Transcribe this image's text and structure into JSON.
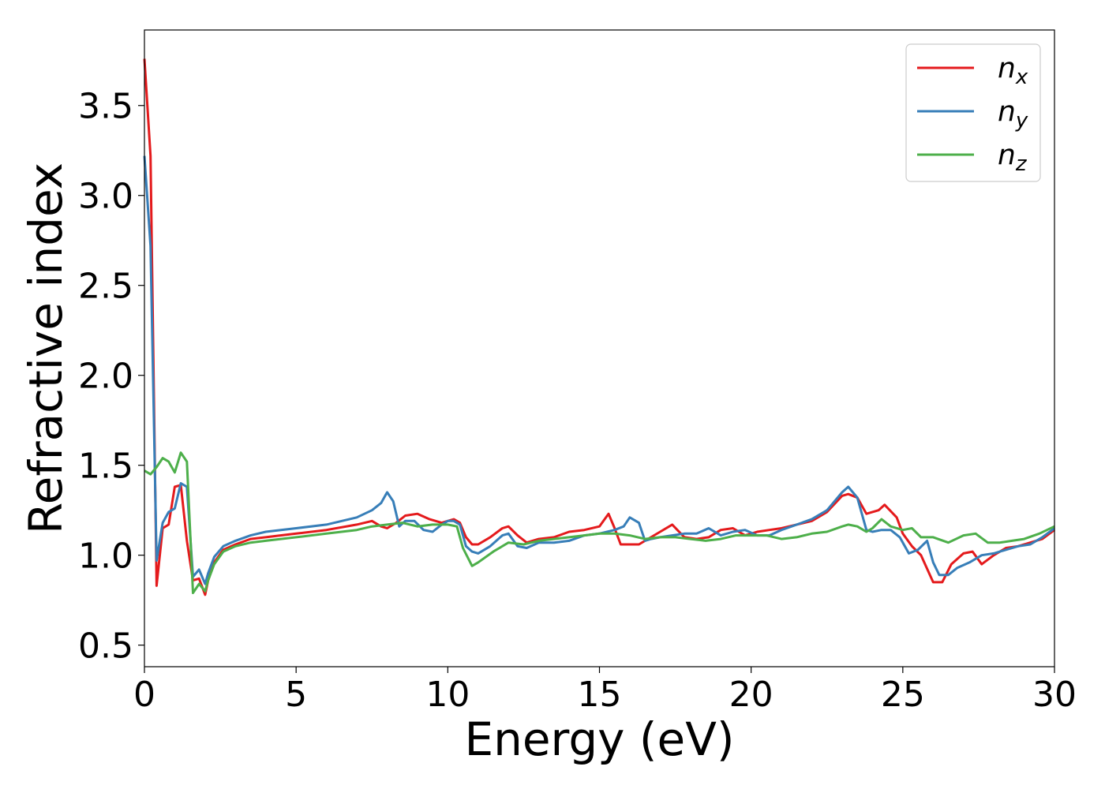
{
  "chart_data": {
    "type": "line",
    "xlabel": "Energy (eV)",
    "ylabel": "Refractive index",
    "xlim": [
      0,
      30
    ],
    "ylim": [
      0.38,
      3.92
    ],
    "xticks": [
      0,
      5,
      10,
      15,
      20,
      25,
      30
    ],
    "xtick_labels": [
      "0",
      "5",
      "10",
      "15",
      "20",
      "25",
      "30"
    ],
    "yticks": [
      0.5,
      1.0,
      1.5,
      2.0,
      2.5,
      3.0,
      3.5
    ],
    "ytick_labels": [
      "0.5",
      "1.0",
      "1.5",
      "2.0",
      "2.5",
      "3.0",
      "3.5"
    ],
    "grid": false,
    "legend_position": "top-right",
    "series": [
      {
        "name": "n",
        "subscript": "x",
        "color": "#e41a1c",
        "x": [
          0,
          0.2,
          0.4,
          0.6,
          0.8,
          1.0,
          1.2,
          1.4,
          1.6,
          1.8,
          2.0,
          2.1,
          2.3,
          2.6,
          3.0,
          3.5,
          4.0,
          5.0,
          6.0,
          7.0,
          7.5,
          7.8,
          8.0,
          8.3,
          8.6,
          9.0,
          9.4,
          9.8,
          10.0,
          10.2,
          10.4,
          10.6,
          10.8,
          11.0,
          11.4,
          11.8,
          12.0,
          12.3,
          12.6,
          13.0,
          13.5,
          14.0,
          14.5,
          15.0,
          15.3,
          15.5,
          15.7,
          16.0,
          16.3,
          16.6,
          17.0,
          17.4,
          17.8,
          18.2,
          18.6,
          19.0,
          19.4,
          19.8,
          20.2,
          20.6,
          21.0,
          21.5,
          22.0,
          22.5,
          23.0,
          23.2,
          23.5,
          23.8,
          24.2,
          24.4,
          24.8,
          25.0,
          25.3,
          25.6,
          26.0,
          26.3,
          26.6,
          27.0,
          27.3,
          27.6,
          28.0,
          28.4,
          28.8,
          29.2,
          29.6,
          30.0
        ],
        "values": [
          3.76,
          3.22,
          0.83,
          1.15,
          1.17,
          1.38,
          1.39,
          1.08,
          0.86,
          0.87,
          0.78,
          0.86,
          0.96,
          1.03,
          1.06,
          1.09,
          1.1,
          1.12,
          1.14,
          1.17,
          1.19,
          1.16,
          1.15,
          1.18,
          1.22,
          1.23,
          1.2,
          1.18,
          1.19,
          1.2,
          1.18,
          1.1,
          1.06,
          1.06,
          1.1,
          1.15,
          1.16,
          1.11,
          1.07,
          1.09,
          1.1,
          1.13,
          1.14,
          1.16,
          1.23,
          1.15,
          1.06,
          1.06,
          1.06,
          1.09,
          1.13,
          1.17,
          1.1,
          1.09,
          1.1,
          1.14,
          1.15,
          1.11,
          1.13,
          1.14,
          1.15,
          1.17,
          1.19,
          1.24,
          1.33,
          1.34,
          1.32,
          1.23,
          1.25,
          1.28,
          1.21,
          1.12,
          1.05,
          1.0,
          0.85,
          0.85,
          0.95,
          1.01,
          1.02,
          0.95,
          1.0,
          1.04,
          1.05,
          1.07,
          1.09,
          1.14
        ]
      },
      {
        "name": "n",
        "subscript": "y",
        "color": "#377eb8",
        "x": [
          0,
          0.2,
          0.4,
          0.6,
          0.8,
          1.0,
          1.2,
          1.4,
          1.6,
          1.8,
          2.0,
          2.1,
          2.3,
          2.6,
          3.0,
          3.5,
          4.0,
          5.0,
          6.0,
          7.0,
          7.5,
          7.8,
          8.0,
          8.2,
          8.4,
          8.6,
          8.9,
          9.2,
          9.5,
          9.8,
          10.0,
          10.2,
          10.4,
          10.6,
          10.8,
          11.0,
          11.4,
          11.8,
          12.0,
          12.3,
          12.6,
          13.0,
          13.5,
          14.0,
          14.5,
          15.0,
          15.5,
          15.8,
          16.0,
          16.3,
          16.5,
          16.7,
          17.0,
          17.4,
          17.8,
          18.2,
          18.6,
          19.0,
          19.4,
          19.8,
          20.2,
          20.6,
          21.0,
          21.5,
          22.0,
          22.5,
          23.0,
          23.2,
          23.5,
          23.8,
          24.0,
          24.3,
          24.6,
          24.9,
          25.2,
          25.5,
          25.8,
          26.0,
          26.2,
          26.5,
          26.8,
          27.2,
          27.6,
          28.0,
          28.4,
          28.8,
          29.2,
          29.6,
          30.0
        ],
        "values": [
          3.22,
          2.72,
          0.97,
          1.18,
          1.24,
          1.26,
          1.4,
          1.38,
          0.88,
          0.92,
          0.84,
          0.9,
          0.99,
          1.05,
          1.08,
          1.11,
          1.13,
          1.15,
          1.17,
          1.21,
          1.25,
          1.29,
          1.35,
          1.3,
          1.16,
          1.19,
          1.19,
          1.14,
          1.13,
          1.17,
          1.19,
          1.19,
          1.17,
          1.05,
          1.02,
          1.01,
          1.05,
          1.11,
          1.12,
          1.05,
          1.04,
          1.07,
          1.07,
          1.08,
          1.11,
          1.12,
          1.14,
          1.16,
          1.21,
          1.18,
          1.08,
          1.09,
          1.1,
          1.11,
          1.12,
          1.12,
          1.15,
          1.11,
          1.13,
          1.14,
          1.11,
          1.11,
          1.14,
          1.17,
          1.2,
          1.25,
          1.35,
          1.38,
          1.32,
          1.14,
          1.13,
          1.14,
          1.14,
          1.1,
          1.01,
          1.03,
          1.08,
          0.96,
          0.89,
          0.89,
          0.93,
          0.96,
          1.0,
          1.01,
          1.03,
          1.05,
          1.06,
          1.1,
          1.15
        ]
      },
      {
        "name": "n",
        "subscript": "z",
        "color": "#4daf4a",
        "x": [
          0,
          0.2,
          0.4,
          0.6,
          0.8,
          1.0,
          1.2,
          1.4,
          1.6,
          1.8,
          2.0,
          2.1,
          2.3,
          2.6,
          3.0,
          3.5,
          4.0,
          5.0,
          6.0,
          7.0,
          7.5,
          8.0,
          8.5,
          9.0,
          9.5,
          10.0,
          10.3,
          10.5,
          10.8,
          11.0,
          11.5,
          12.0,
          12.5,
          13.0,
          13.5,
          14.0,
          14.5,
          15.0,
          15.5,
          16.0,
          16.5,
          17.0,
          17.5,
          18.0,
          18.5,
          19.0,
          19.5,
          20.0,
          20.5,
          21.0,
          21.5,
          22.0,
          22.5,
          23.0,
          23.2,
          23.5,
          23.8,
          24.0,
          24.3,
          24.6,
          25.0,
          25.3,
          25.6,
          26.0,
          26.5,
          27.0,
          27.4,
          27.8,
          28.2,
          28.6,
          29.0,
          29.5,
          30.0
        ],
        "values": [
          1.47,
          1.45,
          1.49,
          1.54,
          1.52,
          1.46,
          1.57,
          1.52,
          0.79,
          0.84,
          0.8,
          0.86,
          0.95,
          1.02,
          1.05,
          1.07,
          1.08,
          1.1,
          1.12,
          1.14,
          1.16,
          1.17,
          1.18,
          1.16,
          1.17,
          1.17,
          1.16,
          1.04,
          0.94,
          0.96,
          1.02,
          1.07,
          1.06,
          1.08,
          1.09,
          1.1,
          1.11,
          1.12,
          1.12,
          1.11,
          1.09,
          1.1,
          1.1,
          1.09,
          1.08,
          1.09,
          1.11,
          1.11,
          1.11,
          1.09,
          1.1,
          1.12,
          1.13,
          1.16,
          1.17,
          1.16,
          1.13,
          1.15,
          1.2,
          1.16,
          1.14,
          1.15,
          1.1,
          1.1,
          1.07,
          1.11,
          1.12,
          1.07,
          1.07,
          1.08,
          1.09,
          1.12,
          1.16
        ]
      }
    ]
  }
}
